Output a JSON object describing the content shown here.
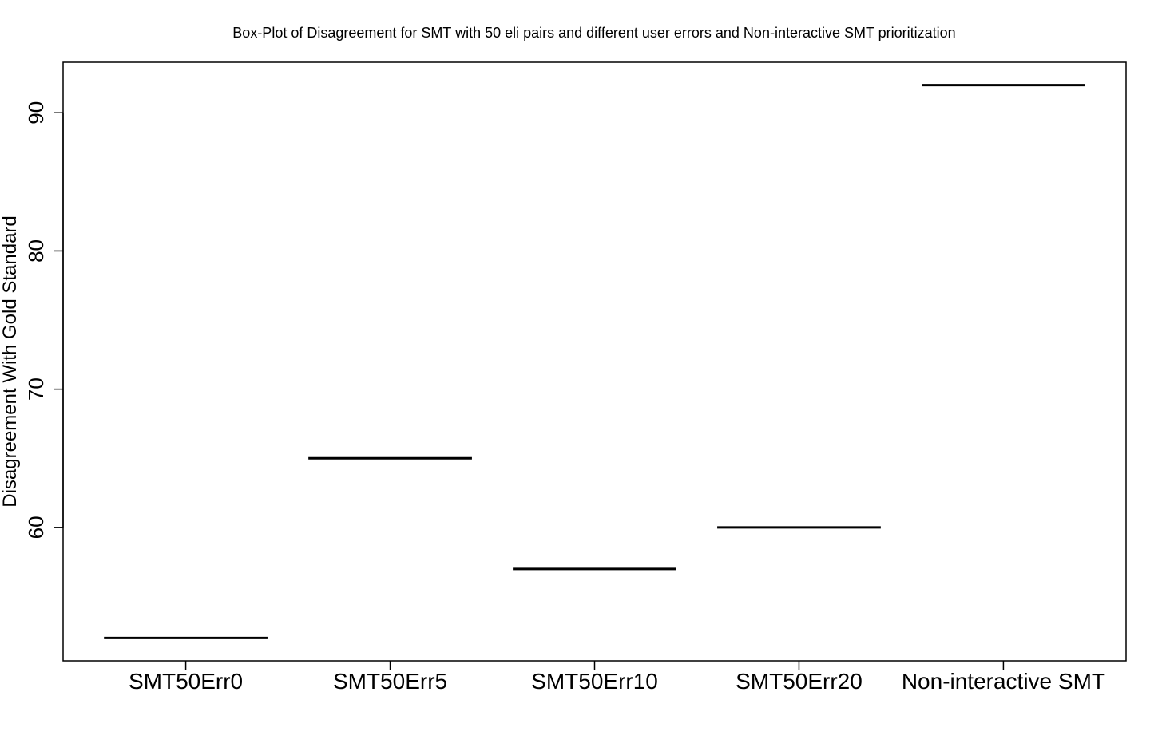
{
  "chart_data": {
    "type": "box",
    "title": "Box-Plot of Disagreement for SMT with 50 eli pairs and different user errors and Non-interactive SMT prioritization",
    "xlabel": "",
    "ylabel": "Disagreement With Gold Standard",
    "categories": [
      "SMT50Err0",
      "SMT50Err5",
      "SMT50Err10",
      "SMT50Err20",
      "Non-interactive SMT"
    ],
    "values": [
      52,
      65,
      57,
      60,
      92
    ],
    "ylim": [
      50.35,
      93.65
    ],
    "yticks": [
      60,
      70,
      80,
      90
    ],
    "grid": false,
    "line_color": "#000000"
  }
}
